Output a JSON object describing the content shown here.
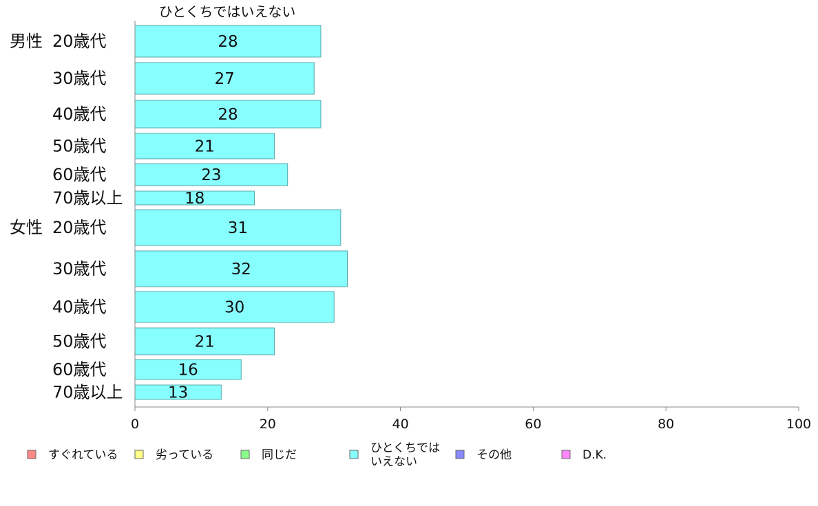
{
  "chart_data": {
    "type": "bar",
    "orientation": "horizontal",
    "series_header": "ひとくちではいえない",
    "categories": [
      {
        "group": "男性",
        "label": "20歳代"
      },
      {
        "group": "",
        "label": "30歳代"
      },
      {
        "group": "",
        "label": "40歳代"
      },
      {
        "group": "",
        "label": "50歳代"
      },
      {
        "group": "",
        "label": "60歳代"
      },
      {
        "group": "",
        "label": "70歳以上"
      },
      {
        "group": "女性",
        "label": "20歳代"
      },
      {
        "group": "",
        "label": "30歳代"
      },
      {
        "group": "",
        "label": "40歳代"
      },
      {
        "group": "",
        "label": "50歳代"
      },
      {
        "group": "",
        "label": "60歳代"
      },
      {
        "group": "",
        "label": "70歳以上"
      }
    ],
    "series": [
      {
        "name": "ひとくちではいえない",
        "color": "#88ffff",
        "values": [
          28,
          27,
          28,
          21,
          23,
          18,
          31,
          32,
          30,
          21,
          16,
          13
        ]
      }
    ],
    "xlim": [
      0,
      100
    ],
    "xticks": [
      0,
      20,
      40,
      60,
      80,
      100
    ],
    "grid": false,
    "legend_position": "bottom",
    "legend": [
      {
        "label": "すぐれている",
        "color": "#ff8888"
      },
      {
        "label": "劣っている",
        "color": "#ffff88"
      },
      {
        "label": "同じだ",
        "color": "#88ff88"
      },
      {
        "label": "ひとくちでは\nいえない",
        "color": "#88ffff"
      },
      {
        "label": "その他",
        "color": "#8888ff"
      },
      {
        "label": "D.K.",
        "color": "#ff88ff"
      }
    ]
  }
}
